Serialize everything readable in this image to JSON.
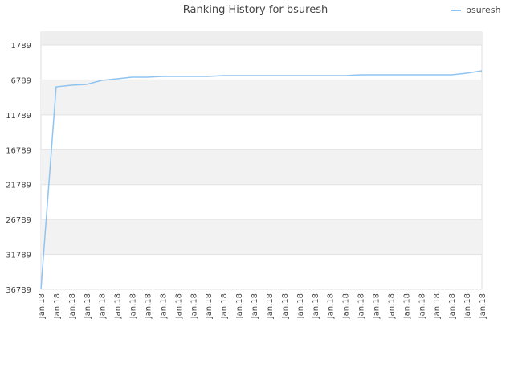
{
  "chart_data": {
    "type": "line",
    "title": "Ranking History for bsuresh",
    "categories": [
      "Jan.18",
      "Jan.18",
      "Jan.18",
      "Jan.18",
      "Jan.18",
      "Jan.18",
      "Jan.18",
      "Jan.18",
      "Jan.18",
      "Jan.18",
      "Jan.18",
      "Jan.18",
      "Jan.18",
      "Jan.18",
      "Jan.18",
      "Jan.18",
      "Jan.18",
      "Jan.18",
      "Jan.18",
      "Jan.18",
      "Jan.18",
      "Jan.18",
      "Jan.18",
      "Jan.18",
      "Jan.18",
      "Jan.18",
      "Jan.18",
      "Jan.18",
      "Jan.18",
      "Jan.18"
    ],
    "series": [
      {
        "name": "bsuresh",
        "color": "#90c4f0",
        "values": [
          36789,
          7776,
          7545,
          7430,
          6855,
          6625,
          6394,
          6394,
          6279,
          6279,
          6279,
          6279,
          6164,
          6164,
          6164,
          6164,
          6164,
          6164,
          6164,
          6164,
          6164,
          6049,
          6049,
          6049,
          6049,
          6049,
          6049,
          6049,
          5819,
          5473
        ]
      }
    ],
    "ylim": [
      36789,
      -53
    ],
    "yticks": [
      1789,
      6789,
      11789,
      16789,
      21789,
      26789,
      31789,
      36789
    ],
    "grid": true,
    "legend": "top-right"
  }
}
